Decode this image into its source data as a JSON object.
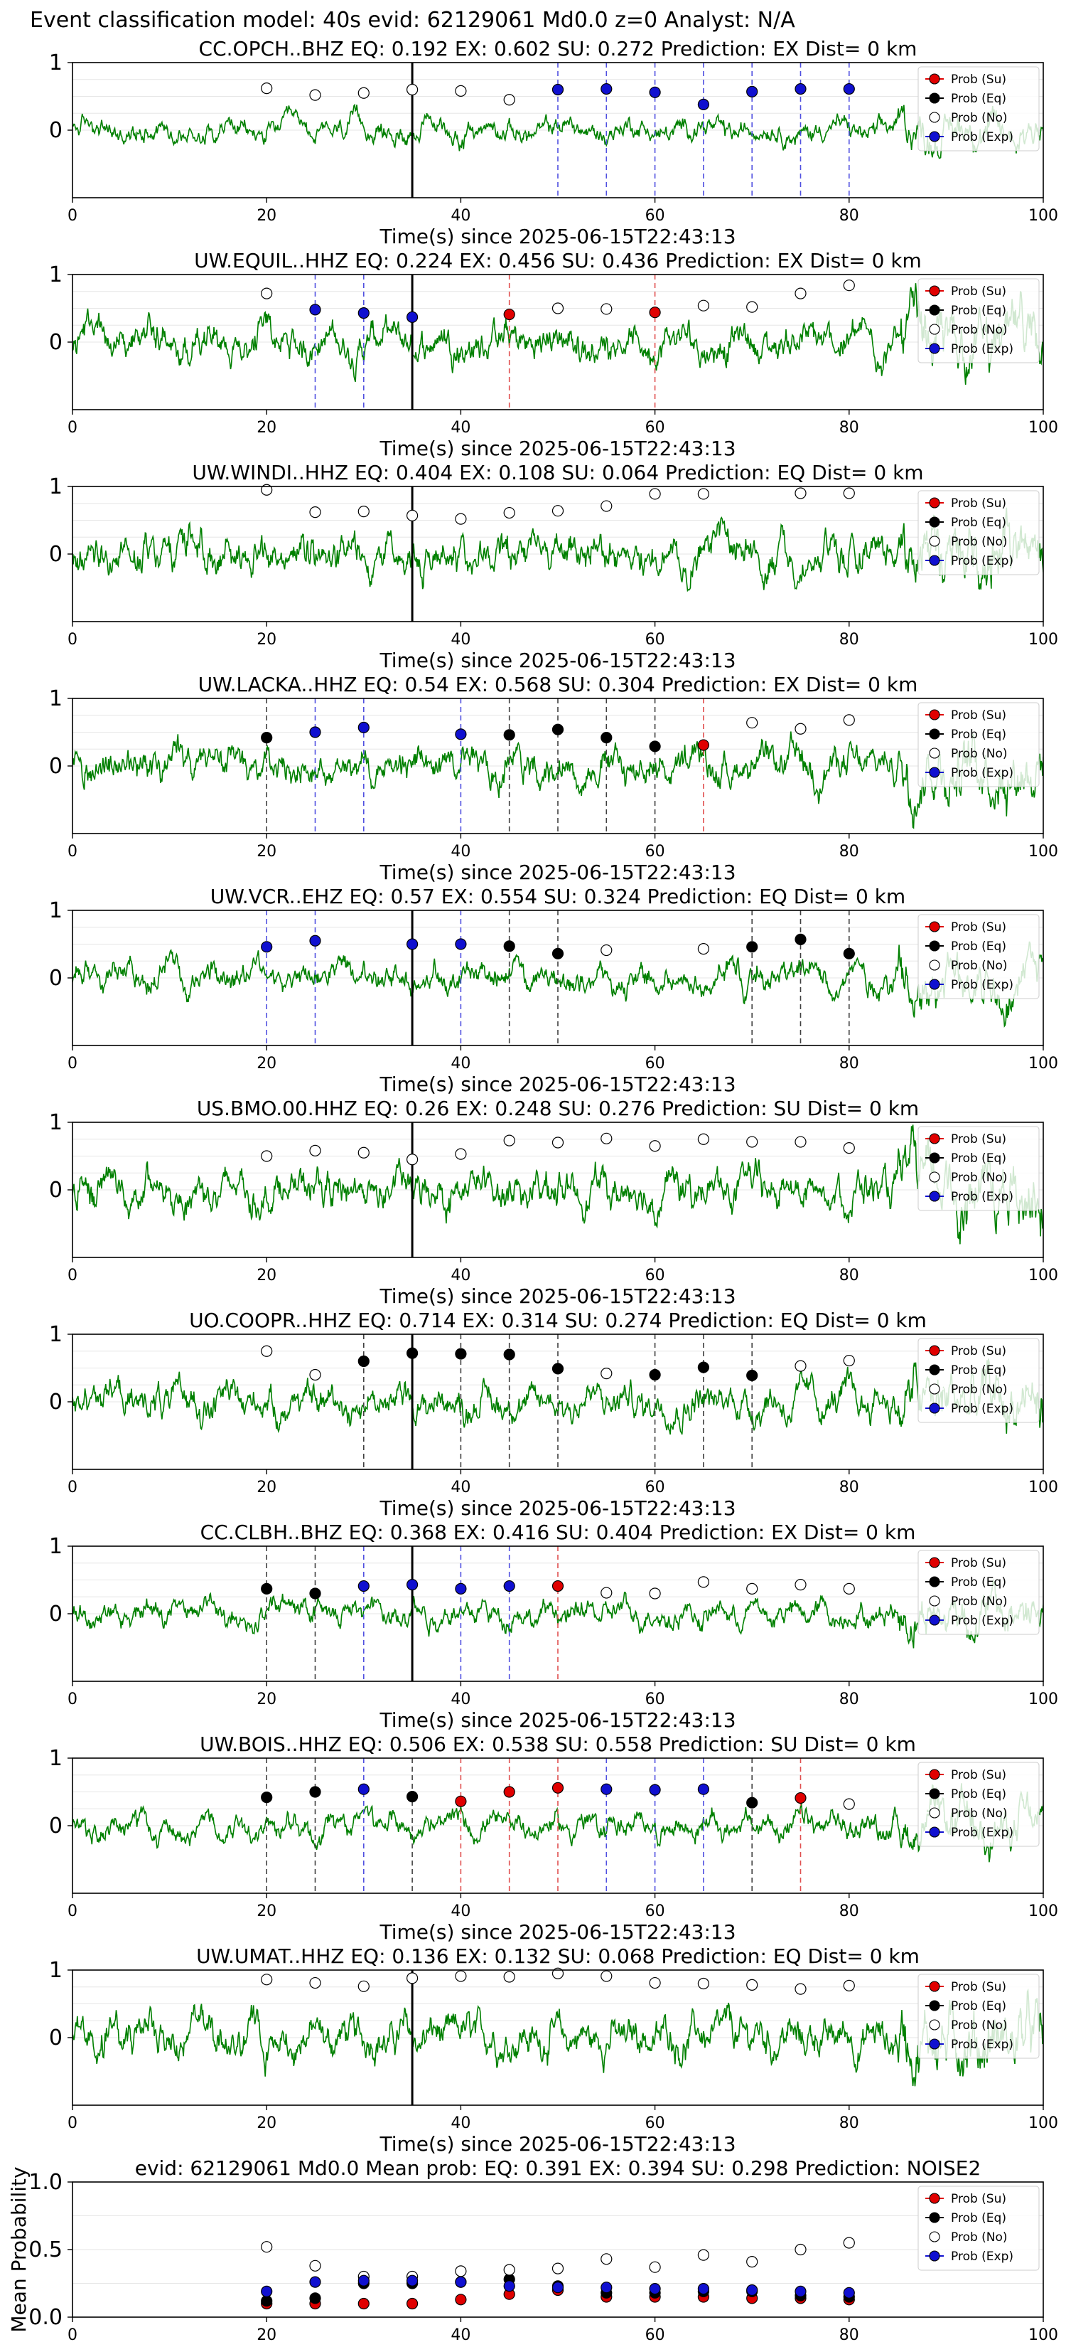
{
  "figure_title": "Event classification model: 40s evid: 62129061 Md0.0 z=0 Analyst: N/A",
  "legend_labels": [
    "Prob (Su)",
    "Prob (Eq)",
    "Prob (No)",
    "Prob (Exp)"
  ],
  "colors": {
    "su": "#e00000",
    "eq": "#000000",
    "no": "#ffffff",
    "exp": "#1010d0",
    "trace": "#008000",
    "pick": "#000000"
  },
  "chart_data": [
    {
      "type": "line",
      "title": "CC.OPCH..BHZ   EQ: 0.192  EX: 0.602  SU: 0.272   Prediction: EX    Dist= 0 km",
      "xlabel": "Time(s) since 2025-06-15T22:43:13",
      "ylabel": "",
      "xlim": [
        0,
        100
      ],
      "ylim": [
        -1,
        1
      ],
      "xticks": [
        "0",
        "20",
        "40",
        "60",
        "80",
        "100"
      ],
      "yticks": [
        "0",
        "1"
      ],
      "pick_time": 35,
      "noise_amplitude": 0.3,
      "windows": [
        {
          "t": 20,
          "c": "no",
          "p": 0.62
        },
        {
          "t": 25,
          "c": "no",
          "p": 0.52
        },
        {
          "t": 30,
          "c": "no",
          "p": 0.55
        },
        {
          "t": 35,
          "c": "no",
          "p": 0.6
        },
        {
          "t": 40,
          "c": "no",
          "p": 0.58
        },
        {
          "t": 45,
          "c": "no",
          "p": 0.45
        },
        {
          "t": 50,
          "c": "exp",
          "p": 0.6
        },
        {
          "t": 55,
          "c": "exp",
          "p": 0.61
        },
        {
          "t": 60,
          "c": "exp",
          "p": 0.56
        },
        {
          "t": 65,
          "c": "exp",
          "p": 0.38
        },
        {
          "t": 70,
          "c": "exp",
          "p": 0.57
        },
        {
          "t": 75,
          "c": "exp",
          "p": 0.61
        },
        {
          "t": 80,
          "c": "exp",
          "p": 0.61
        }
      ]
    },
    {
      "type": "line",
      "title": "UW.EQUIL..HHZ   EQ: 0.224  EX: 0.456  SU: 0.436   Prediction: EX    Dist= 0 km",
      "xlabel": "Time(s) since 2025-06-15T22:43:13",
      "ylabel": "",
      "xlim": [
        0,
        100
      ],
      "ylim": [
        -1,
        1
      ],
      "xticks": [
        "0",
        "20",
        "40",
        "60",
        "80",
        "100"
      ],
      "yticks": [
        "0",
        "1"
      ],
      "pick_time": 35,
      "noise_amplitude": 0.5,
      "windows": [
        {
          "t": 20,
          "c": "no",
          "p": 0.72
        },
        {
          "t": 25,
          "c": "exp",
          "p": 0.48
        },
        {
          "t": 30,
          "c": "exp",
          "p": 0.43
        },
        {
          "t": 35,
          "c": "exp",
          "p": 0.37
        },
        {
          "t": 45,
          "c": "su",
          "p": 0.41
        },
        {
          "t": 50,
          "c": "no",
          "p": 0.5
        },
        {
          "t": 55,
          "c": "no",
          "p": 0.49
        },
        {
          "t": 60,
          "c": "su",
          "p": 0.44
        },
        {
          "t": 65,
          "c": "no",
          "p": 0.54
        },
        {
          "t": 70,
          "c": "no",
          "p": 0.52
        },
        {
          "t": 75,
          "c": "no",
          "p": 0.72
        },
        {
          "t": 80,
          "c": "no",
          "p": 0.84
        }
      ]
    },
    {
      "type": "line",
      "title": "UW.WINDI..HHZ   EQ: 0.404  EX: 0.108  SU: 0.064   Prediction: EQ    Dist= 0 km",
      "xlabel": "Time(s) since 2025-06-15T22:43:13",
      "ylabel": "",
      "xlim": [
        0,
        100
      ],
      "ylim": [
        -1,
        1
      ],
      "xticks": [
        "0",
        "20",
        "40",
        "60",
        "80",
        "100"
      ],
      "yticks": [
        "0",
        "1"
      ],
      "pick_time": 35,
      "noise_amplitude": 0.55,
      "windows": [
        {
          "t": 20,
          "c": "no",
          "p": 0.95
        },
        {
          "t": 25,
          "c": "no",
          "p": 0.62
        },
        {
          "t": 30,
          "c": "no",
          "p": 0.63
        },
        {
          "t": 35,
          "c": "no",
          "p": 0.57
        },
        {
          "t": 40,
          "c": "no",
          "p": 0.52
        },
        {
          "t": 45,
          "c": "no",
          "p": 0.61
        },
        {
          "t": 50,
          "c": "no",
          "p": 0.64
        },
        {
          "t": 55,
          "c": "no",
          "p": 0.71
        },
        {
          "t": 60,
          "c": "no",
          "p": 0.89
        },
        {
          "t": 65,
          "c": "no",
          "p": 0.89
        },
        {
          "t": 75,
          "c": "no",
          "p": 0.9
        },
        {
          "t": 80,
          "c": "no",
          "p": 0.9
        }
      ]
    },
    {
      "type": "line",
      "title": "UW.LACKA..HHZ   EQ: 0.54  EX: 0.568  SU: 0.304   Prediction: EX    Dist= 0 km",
      "xlabel": "Time(s) since 2025-06-15T22:43:13",
      "ylabel": "",
      "xlim": [
        0,
        100
      ],
      "ylim": [
        -1,
        1
      ],
      "xticks": [
        "0",
        "20",
        "40",
        "60",
        "80",
        "100"
      ],
      "yticks": [
        "0",
        "1"
      ],
      "pick_time": null,
      "noise_amplitude": 0.5,
      "windows": [
        {
          "t": 20,
          "c": "eq",
          "p": 0.42
        },
        {
          "t": 25,
          "c": "exp",
          "p": 0.5
        },
        {
          "t": 30,
          "c": "exp",
          "p": 0.57
        },
        {
          "t": 40,
          "c": "exp",
          "p": 0.47
        },
        {
          "t": 45,
          "c": "eq",
          "p": 0.46
        },
        {
          "t": 50,
          "c": "eq",
          "p": 0.54
        },
        {
          "t": 55,
          "c": "eq",
          "p": 0.42
        },
        {
          "t": 60,
          "c": "eq",
          "p": 0.29
        },
        {
          "t": 65,
          "c": "su",
          "p": 0.31
        },
        {
          "t": 70,
          "c": "no",
          "p": 0.64
        },
        {
          "t": 75,
          "c": "no",
          "p": 0.55
        },
        {
          "t": 80,
          "c": "no",
          "p": 0.68
        }
      ]
    },
    {
      "type": "line",
      "title": "UW.VCR..EHZ   EQ: 0.57  EX: 0.554  SU: 0.324   Prediction: EQ    Dist= 0 km",
      "xlabel": "Time(s) since 2025-06-15T22:43:13",
      "ylabel": "",
      "xlim": [
        0,
        100
      ],
      "ylim": [
        -1,
        1
      ],
      "xticks": [
        "0",
        "20",
        "40",
        "60",
        "80",
        "100"
      ],
      "yticks": [
        "0",
        "1"
      ],
      "pick_time": 35,
      "noise_amplitude": 0.4,
      "windows": [
        {
          "t": 20,
          "c": "exp",
          "p": 0.46
        },
        {
          "t": 25,
          "c": "exp",
          "p": 0.55
        },
        {
          "t": 35,
          "c": "exp",
          "p": 0.5
        },
        {
          "t": 40,
          "c": "exp",
          "p": 0.5
        },
        {
          "t": 45,
          "c": "eq",
          "p": 0.47
        },
        {
          "t": 50,
          "c": "eq",
          "p": 0.36
        },
        {
          "t": 55,
          "c": "no",
          "p": 0.41
        },
        {
          "t": 65,
          "c": "no",
          "p": 0.43
        },
        {
          "t": 70,
          "c": "eq",
          "p": 0.46
        },
        {
          "t": 75,
          "c": "eq",
          "p": 0.57
        },
        {
          "t": 80,
          "c": "eq",
          "p": 0.36
        }
      ]
    },
    {
      "type": "line",
      "title": "US.BMO.00.HHZ   EQ: 0.26  EX: 0.248  SU: 0.276   Prediction: SU    Dist= 0 km",
      "xlabel": "Time(s) since 2025-06-15T22:43:13",
      "ylabel": "",
      "xlim": [
        0,
        100
      ],
      "ylim": [
        -1,
        1
      ],
      "xticks": [
        "0",
        "20",
        "40",
        "60",
        "80",
        "100"
      ],
      "yticks": [
        "0",
        "1"
      ],
      "pick_time": 35,
      "noise_amplitude": 0.55,
      "windows": [
        {
          "t": 20,
          "c": "no",
          "p": 0.5
        },
        {
          "t": 25,
          "c": "no",
          "p": 0.58
        },
        {
          "t": 30,
          "c": "no",
          "p": 0.55
        },
        {
          "t": 35,
          "c": "no",
          "p": 0.45
        },
        {
          "t": 40,
          "c": "no",
          "p": 0.53
        },
        {
          "t": 45,
          "c": "no",
          "p": 0.73
        },
        {
          "t": 50,
          "c": "no",
          "p": 0.7
        },
        {
          "t": 55,
          "c": "no",
          "p": 0.76
        },
        {
          "t": 60,
          "c": "no",
          "p": 0.65
        },
        {
          "t": 65,
          "c": "no",
          "p": 0.75
        },
        {
          "t": 70,
          "c": "no",
          "p": 0.71
        },
        {
          "t": 75,
          "c": "no",
          "p": 0.71
        },
        {
          "t": 80,
          "c": "no",
          "p": 0.62
        }
      ]
    },
    {
      "type": "line",
      "title": "UO.COOPR..HHZ   EQ: 0.714  EX: 0.314  SU: 0.274   Prediction: EQ    Dist= 0 km",
      "xlabel": "Time(s) since 2025-06-15T22:43:13",
      "ylabel": "",
      "xlim": [
        0,
        100
      ],
      "ylim": [
        -1,
        1
      ],
      "xticks": [
        "0",
        "20",
        "40",
        "60",
        "80",
        "100"
      ],
      "yticks": [
        "0",
        "1"
      ],
      "pick_time": 35,
      "noise_amplitude": 0.5,
      "windows": [
        {
          "t": 20,
          "c": "no",
          "p": 0.75
        },
        {
          "t": 25,
          "c": "no",
          "p": 0.4
        },
        {
          "t": 30,
          "c": "eq",
          "p": 0.6
        },
        {
          "t": 35,
          "c": "eq",
          "p": 0.72
        },
        {
          "t": 40,
          "c": "eq",
          "p": 0.71
        },
        {
          "t": 45,
          "c": "eq",
          "p": 0.7
        },
        {
          "t": 50,
          "c": "eq",
          "p": 0.49
        },
        {
          "t": 55,
          "c": "no",
          "p": 0.42
        },
        {
          "t": 60,
          "c": "eq",
          "p": 0.4
        },
        {
          "t": 65,
          "c": "eq",
          "p": 0.51
        },
        {
          "t": 70,
          "c": "eq",
          "p": 0.39
        },
        {
          "t": 75,
          "c": "no",
          "p": 0.53
        },
        {
          "t": 80,
          "c": "no",
          "p": 0.61
        }
      ]
    },
    {
      "type": "line",
      "title": "CC.CLBH..BHZ   EQ: 0.368  EX: 0.416  SU: 0.404   Prediction: EX    Dist= 0 km",
      "xlabel": "Time(s) since 2025-06-15T22:43:13",
      "ylabel": "",
      "xlim": [
        0,
        100
      ],
      "ylim": [
        -1,
        1
      ],
      "xticks": [
        "0",
        "20",
        "40",
        "60",
        "80",
        "100"
      ],
      "yticks": [
        "0",
        "1"
      ],
      "pick_time": 35,
      "noise_amplitude": 0.35,
      "windows": [
        {
          "t": 20,
          "c": "eq",
          "p": 0.37
        },
        {
          "t": 25,
          "c": "eq",
          "p": 0.3
        },
        {
          "t": 30,
          "c": "exp",
          "p": 0.41
        },
        {
          "t": 35,
          "c": "exp",
          "p": 0.43
        },
        {
          "t": 40,
          "c": "exp",
          "p": 0.37
        },
        {
          "t": 45,
          "c": "exp",
          "p": 0.41
        },
        {
          "t": 50,
          "c": "su",
          "p": 0.41
        },
        {
          "t": 55,
          "c": "no",
          "p": 0.31
        },
        {
          "t": 60,
          "c": "no",
          "p": 0.3
        },
        {
          "t": 65,
          "c": "no",
          "p": 0.47
        },
        {
          "t": 70,
          "c": "no",
          "p": 0.37
        },
        {
          "t": 75,
          "c": "no",
          "p": 0.43
        },
        {
          "t": 80,
          "c": "no",
          "p": 0.37
        }
      ]
    },
    {
      "type": "line",
      "title": "UW.BOIS..HHZ   EQ: 0.506  EX: 0.538  SU: 0.558   Prediction: SU    Dist= 0 km",
      "xlabel": "Time(s) since 2025-06-15T22:43:13",
      "ylabel": "",
      "xlim": [
        0,
        100
      ],
      "ylim": [
        -1,
        1
      ],
      "xticks": [
        "0",
        "20",
        "40",
        "60",
        "80",
        "100"
      ],
      "yticks": [
        "0",
        "1"
      ],
      "pick_time": null,
      "noise_amplitude": 0.35,
      "windows": [
        {
          "t": 20,
          "c": "eq",
          "p": 0.42
        },
        {
          "t": 25,
          "c": "eq",
          "p": 0.5
        },
        {
          "t": 30,
          "c": "exp",
          "p": 0.54
        },
        {
          "t": 35,
          "c": "eq",
          "p": 0.43
        },
        {
          "t": 40,
          "c": "su",
          "p": 0.36
        },
        {
          "t": 45,
          "c": "su",
          "p": 0.5
        },
        {
          "t": 50,
          "c": "su",
          "p": 0.56
        },
        {
          "t": 55,
          "c": "exp",
          "p": 0.54
        },
        {
          "t": 60,
          "c": "exp",
          "p": 0.53
        },
        {
          "t": 65,
          "c": "exp",
          "p": 0.54
        },
        {
          "t": 70,
          "c": "eq",
          "p": 0.34
        },
        {
          "t": 75,
          "c": "su",
          "p": 0.41
        },
        {
          "t": 80,
          "c": "no",
          "p": 0.32
        }
      ]
    },
    {
      "type": "line",
      "title": "UW.UMAT..HHZ   EQ: 0.136  EX: 0.132  SU: 0.068   Prediction: EQ    Dist= 0 km",
      "xlabel": "Time(s) since 2025-06-15T22:43:13",
      "ylabel": "",
      "xlim": [
        0,
        100
      ],
      "ylim": [
        -1,
        1
      ],
      "xticks": [
        "0",
        "20",
        "40",
        "60",
        "80",
        "100"
      ],
      "yticks": [
        "0",
        "1"
      ],
      "pick_time": 35,
      "noise_amplitude": 0.55,
      "windows": [
        {
          "t": 20,
          "c": "no",
          "p": 0.86
        },
        {
          "t": 25,
          "c": "no",
          "p": 0.81
        },
        {
          "t": 30,
          "c": "no",
          "p": 0.76
        },
        {
          "t": 35,
          "c": "no",
          "p": 0.88
        },
        {
          "t": 40,
          "c": "no",
          "p": 0.91
        },
        {
          "t": 45,
          "c": "no",
          "p": 0.9
        },
        {
          "t": 50,
          "c": "no",
          "p": 0.95
        },
        {
          "t": 55,
          "c": "no",
          "p": 0.91
        },
        {
          "t": 60,
          "c": "no",
          "p": 0.81
        },
        {
          "t": 65,
          "c": "no",
          "p": 0.8
        },
        {
          "t": 70,
          "c": "no",
          "p": 0.78
        },
        {
          "t": 75,
          "c": "no",
          "p": 0.72
        },
        {
          "t": 80,
          "c": "no",
          "p": 0.77
        }
      ]
    },
    {
      "type": "scatter",
      "title": "evid: 62129061   Md0.0    Mean prob:    EQ: 0.391  EX: 0.394  SU: 0.298   Prediction: NOISE2",
      "xlabel": "",
      "ylabel": "Mean Probability",
      "xlim": [
        0,
        100
      ],
      "ylim": [
        0,
        1
      ],
      "xticks": [
        "0",
        "20",
        "40",
        "60",
        "80",
        "100"
      ],
      "yticks": [
        "0.0",
        "0.5",
        "1.0"
      ],
      "x": [
        20,
        25,
        30,
        35,
        40,
        45,
        50,
        55,
        60,
        65,
        70,
        75,
        80
      ],
      "series": [
        {
          "name": "Prob (Su)",
          "key": "su",
          "values": [
            0.1,
            0.1,
            0.1,
            0.1,
            0.13,
            0.17,
            0.2,
            0.15,
            0.15,
            0.15,
            0.14,
            0.14,
            0.13
          ]
        },
        {
          "name": "Prob (Eq)",
          "key": "eq",
          "values": [
            0.12,
            0.14,
            0.25,
            0.25,
            0.26,
            0.28,
            0.23,
            0.18,
            0.18,
            0.19,
            0.19,
            0.16,
            0.15
          ]
        },
        {
          "name": "Prob (No)",
          "key": "no",
          "values": [
            0.52,
            0.38,
            0.3,
            0.3,
            0.34,
            0.35,
            0.36,
            0.43,
            0.37,
            0.46,
            0.41,
            0.5,
            0.55
          ]
        },
        {
          "name": "Prob (Exp)",
          "key": "exp",
          "values": [
            0.19,
            0.26,
            0.27,
            0.27,
            0.26,
            0.23,
            0.22,
            0.22,
            0.21,
            0.21,
            0.2,
            0.19,
            0.18
          ]
        }
      ]
    }
  ]
}
